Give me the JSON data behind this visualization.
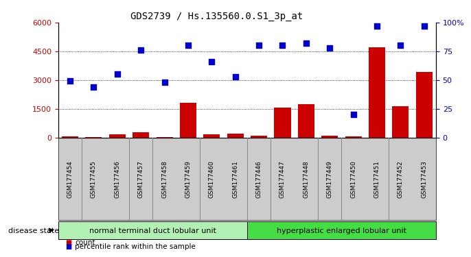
{
  "title": "GDS2739 / Hs.135560.0.S1_3p_at",
  "samples": [
    "GSM177454",
    "GSM177455",
    "GSM177456",
    "GSM177457",
    "GSM177458",
    "GSM177459",
    "GSM177460",
    "GSM177461",
    "GSM177446",
    "GSM177447",
    "GSM177448",
    "GSM177449",
    "GSM177450",
    "GSM177451",
    "GSM177452",
    "GSM177453"
  ],
  "counts": [
    50,
    15,
    150,
    280,
    30,
    1800,
    180,
    200,
    80,
    1560,
    1720,
    80,
    50,
    4700,
    1640,
    3400
  ],
  "percentiles": [
    49,
    44,
    55,
    76,
    48,
    80,
    66,
    53,
    80,
    80,
    82,
    78,
    20,
    97,
    80,
    97
  ],
  "group1_label": "normal terminal duct lobular unit",
  "group2_label": "hyperplastic enlarged lobular unit",
  "group1_count": 8,
  "group2_count": 8,
  "group1_color": "#b3f0b3",
  "group2_color": "#44dd44",
  "bar_color": "#CC0000",
  "dot_color": "#0000CC",
  "ylim_left": [
    0,
    6000
  ],
  "ylim_right": [
    0,
    100
  ],
  "yticks_left": [
    0,
    1500,
    3000,
    4500,
    6000
  ],
  "ytick_labels_left": [
    "0",
    "1500",
    "3000",
    "4500",
    "6000"
  ],
  "yticks_right": [
    0,
    25,
    50,
    75,
    100
  ],
  "ytick_labels_right": [
    "0",
    "25",
    "50",
    "75",
    "100%"
  ],
  "grid_values": [
    1500,
    3000,
    4500
  ],
  "legend_count_label": "count",
  "legend_pct_label": "percentile rank within the sample",
  "disease_state_label": "disease state",
  "tick_bg_color": "#cccccc"
}
